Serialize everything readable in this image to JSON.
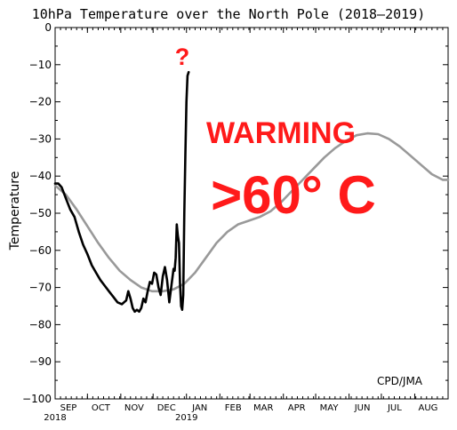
{
  "chart_data": {
    "type": "line",
    "title": "10hPa Temperature over the North Pole (2018–2019)",
    "ylabel": "Temperature",
    "ylim": [
      -100,
      0
    ],
    "yticks": [
      0,
      -10,
      -20,
      -30,
      -40,
      -50,
      -60,
      -70,
      -80,
      -90,
      -100
    ],
    "xlim": [
      0,
      365
    ],
    "xticks": [
      {
        "day": 0,
        "label": "SEP",
        "sub": "2018"
      },
      {
        "day": 30,
        "label": "OCT",
        "sub": ""
      },
      {
        "day": 61,
        "label": "NOV",
        "sub": ""
      },
      {
        "day": 91,
        "label": "DEC",
        "sub": ""
      },
      {
        "day": 122,
        "label": "JAN",
        "sub": "2019"
      },
      {
        "day": 153,
        "label": "FEB",
        "sub": ""
      },
      {
        "day": 181,
        "label": "MAR",
        "sub": ""
      },
      {
        "day": 212,
        "label": "APR",
        "sub": ""
      },
      {
        "day": 242,
        "label": "MAY",
        "sub": ""
      },
      {
        "day": 273,
        "label": "JUN",
        "sub": ""
      },
      {
        "day": 303,
        "label": "JUL",
        "sub": ""
      },
      {
        "day": 334,
        "label": "AUG",
        "sub": ""
      }
    ],
    "series": [
      {
        "color": "#999999",
        "x": [
          0,
          10,
          20,
          30,
          40,
          50,
          60,
          70,
          80,
          90,
          100,
          110,
          120,
          130,
          140,
          150,
          160,
          170,
          180,
          190,
          200,
          210,
          220,
          230,
          240,
          250,
          260,
          270,
          280,
          290,
          300,
          310,
          320,
          330,
          340,
          350,
          360,
          365
        ],
        "y": [
          -42.5,
          -45,
          -49,
          -53.5,
          -58,
          -62,
          -65.5,
          -68,
          -70,
          -71,
          -71,
          -70.5,
          -69,
          -66,
          -62,
          -58,
          -55,
          -53,
          -52,
          -51,
          -49.5,
          -47,
          -44,
          -41,
          -38,
          -35,
          -32.5,
          -30.5,
          -29,
          -28.5,
          -28.7,
          -30,
          -32,
          -34.5,
          -37,
          -39.5,
          -41,
          -41
        ]
      },
      {
        "color": "#000000",
        "x": [
          0,
          3,
          6,
          10,
          14,
          18,
          22,
          26,
          30,
          34,
          38,
          42,
          46,
          50,
          54,
          58,
          62,
          66,
          68,
          70,
          72,
          74,
          76,
          78,
          80,
          82,
          84,
          86,
          88,
          90,
          92,
          94,
          96,
          98,
          100,
          102,
          104,
          106,
          108,
          110,
          111,
          112,
          113,
          114,
          115,
          116,
          117,
          118,
          119,
          120,
          121,
          122,
          123,
          124
        ],
        "y": [
          -42,
          -42,
          -43,
          -46,
          -49,
          -51,
          -55,
          -58.5,
          -61,
          -64,
          -66,
          -68,
          -69.5,
          -71,
          -72.5,
          -74,
          -74.5,
          -73.5,
          -71,
          -73,
          -75.5,
          -76.5,
          -76,
          -76.5,
          -75.5,
          -73,
          -74,
          -71,
          -68.5,
          -69,
          -66,
          -66.5,
          -70,
          -72,
          -67,
          -64.5,
          -68,
          -74,
          -69.5,
          -65,
          -65.5,
          -62,
          -53,
          -56,
          -58,
          -69,
          -75,
          -76,
          -72,
          -50,
          -34,
          -20,
          -13,
          -12
        ]
      }
    ],
    "annotations": {
      "question": "?",
      "warming": "WARMING",
      "magnitude": ">60° C"
    },
    "credit": "CPD/JMA",
    "colors": {
      "annotation": "#ff1a1a",
      "axis": "#000000"
    }
  }
}
